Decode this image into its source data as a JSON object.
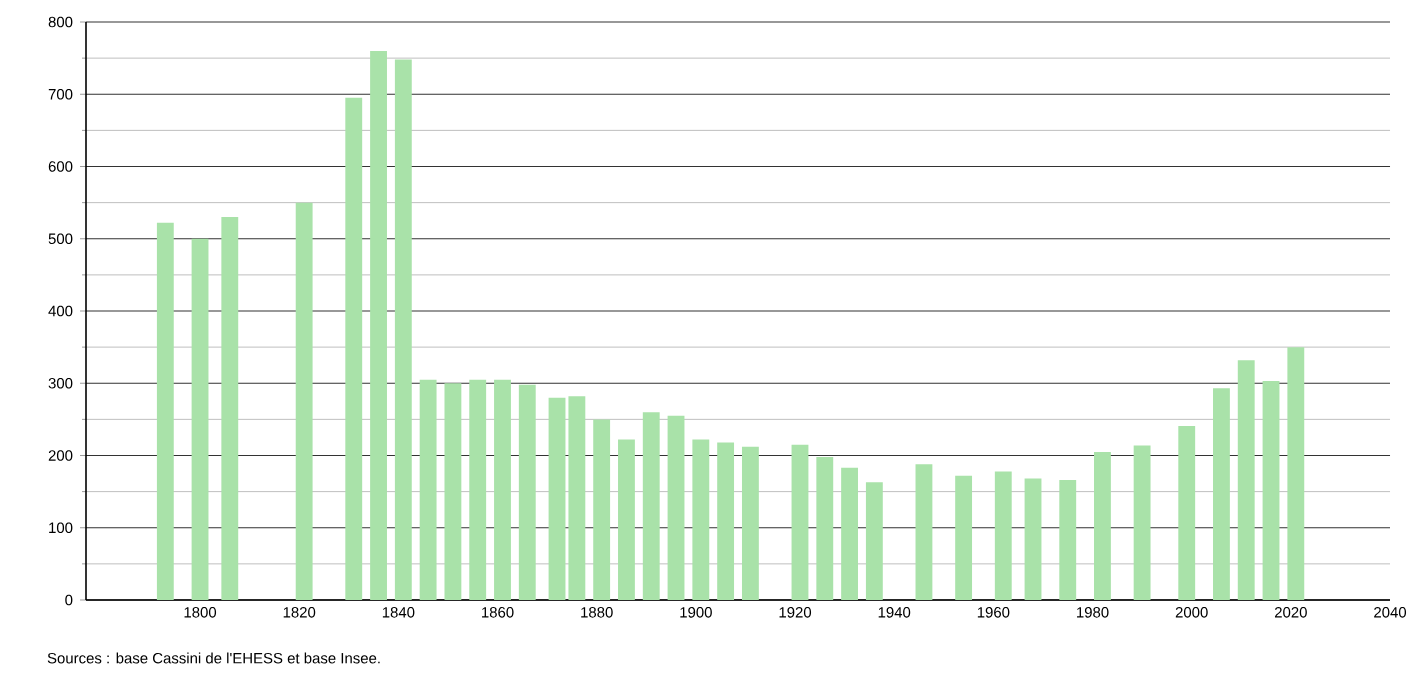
{
  "chart_data": {
    "type": "bar",
    "color": "#a9e2a9",
    "x": [
      1793,
      1800,
      1806,
      1821,
      1831,
      1836,
      1841,
      1846,
      1851,
      1856,
      1861,
      1866,
      1872,
      1876,
      1881,
      1886,
      1891,
      1896,
      1901,
      1906,
      1911,
      1921,
      1926,
      1931,
      1936,
      1946,
      1954,
      1962,
      1968,
      1975,
      1982,
      1990,
      1999,
      2006,
      2011,
      2016,
      2021
    ],
    "values": [
      522,
      500,
      530,
      550,
      695,
      760,
      748,
      305,
      300,
      305,
      305,
      298,
      280,
      282,
      250,
      222,
      260,
      255,
      222,
      218,
      212,
      215,
      198,
      183,
      163,
      188,
      172,
      178,
      168,
      166,
      205,
      214,
      241,
      293,
      332,
      303,
      350
    ],
    "xlim": [
      1777,
      2040
    ],
    "xticks": [
      1800,
      1820,
      1840,
      1860,
      1880,
      1900,
      1920,
      1940,
      1960,
      1980,
      2000,
      2020,
      2040
    ],
    "ylim": [
      0,
      800
    ],
    "yticks": [
      0,
      100,
      200,
      300,
      400,
      500,
      600,
      700,
      800
    ],
    "grid": "y",
    "annotations": [
      "Sources : base Cassini de l'EHESS et base Insee."
    ]
  }
}
